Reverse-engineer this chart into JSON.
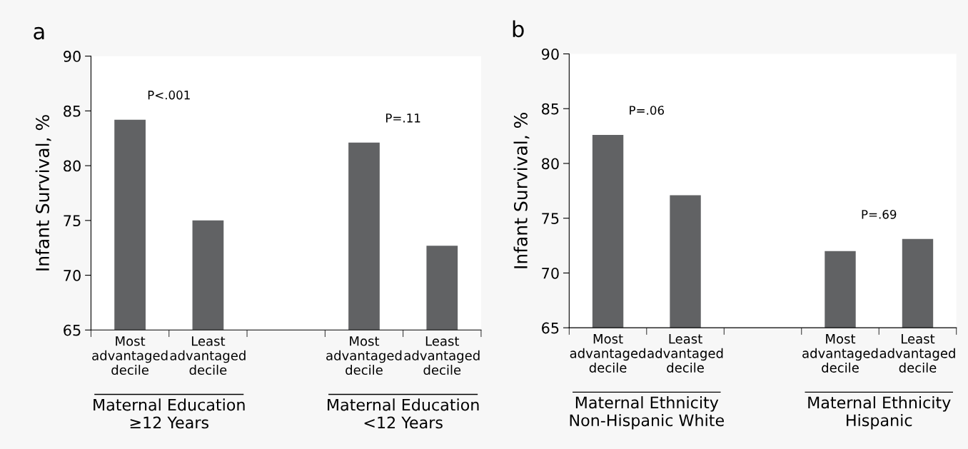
{
  "chart_data": [
    {
      "type": "bar",
      "title": "a",
      "ylabel": "Infant Survival, %",
      "categories": [
        "Most\nadvantaged\ndecile",
        "Least\nadvantaged\ndecile",
        null,
        "Most\nadvantaged\ndecile",
        "Least\nadvantaged\ndecile"
      ],
      "values": [
        84.2,
        75.0,
        null,
        82.1,
        72.7
      ],
      "color": "#616264",
      "ylim": [
        65,
        90
      ],
      "yticks": [
        65,
        70,
        75,
        80,
        85,
        90
      ],
      "grid": false,
      "legend": false,
      "annotations": [
        "P<.001",
        "P=.11",
        "Maternal Education\n≥12 Years",
        "Maternal Education\n<12 Years"
      ]
    },
    {
      "type": "bar",
      "title": "b",
      "ylabel": "Infant Survival, %",
      "categories": [
        "Most\nadvantaged\ndecile",
        "Least\nadvantaged\ndecile",
        null,
        "Most\nadvantaged\ndecile",
        "Least\nadvantaged\ndecile"
      ],
      "values": [
        82.6,
        77.1,
        null,
        72.0,
        73.1
      ],
      "color": "#616264",
      "ylim": [
        65,
        90
      ],
      "yticks": [
        65,
        70,
        75,
        80,
        85,
        90
      ],
      "grid": false,
      "legend": false,
      "annotations": [
        "P=.06",
        "P=.69",
        "Maternal Ethnicity\nNon-Hispanic White",
        "Maternal Ethnicity\nHispanic"
      ]
    }
  ]
}
